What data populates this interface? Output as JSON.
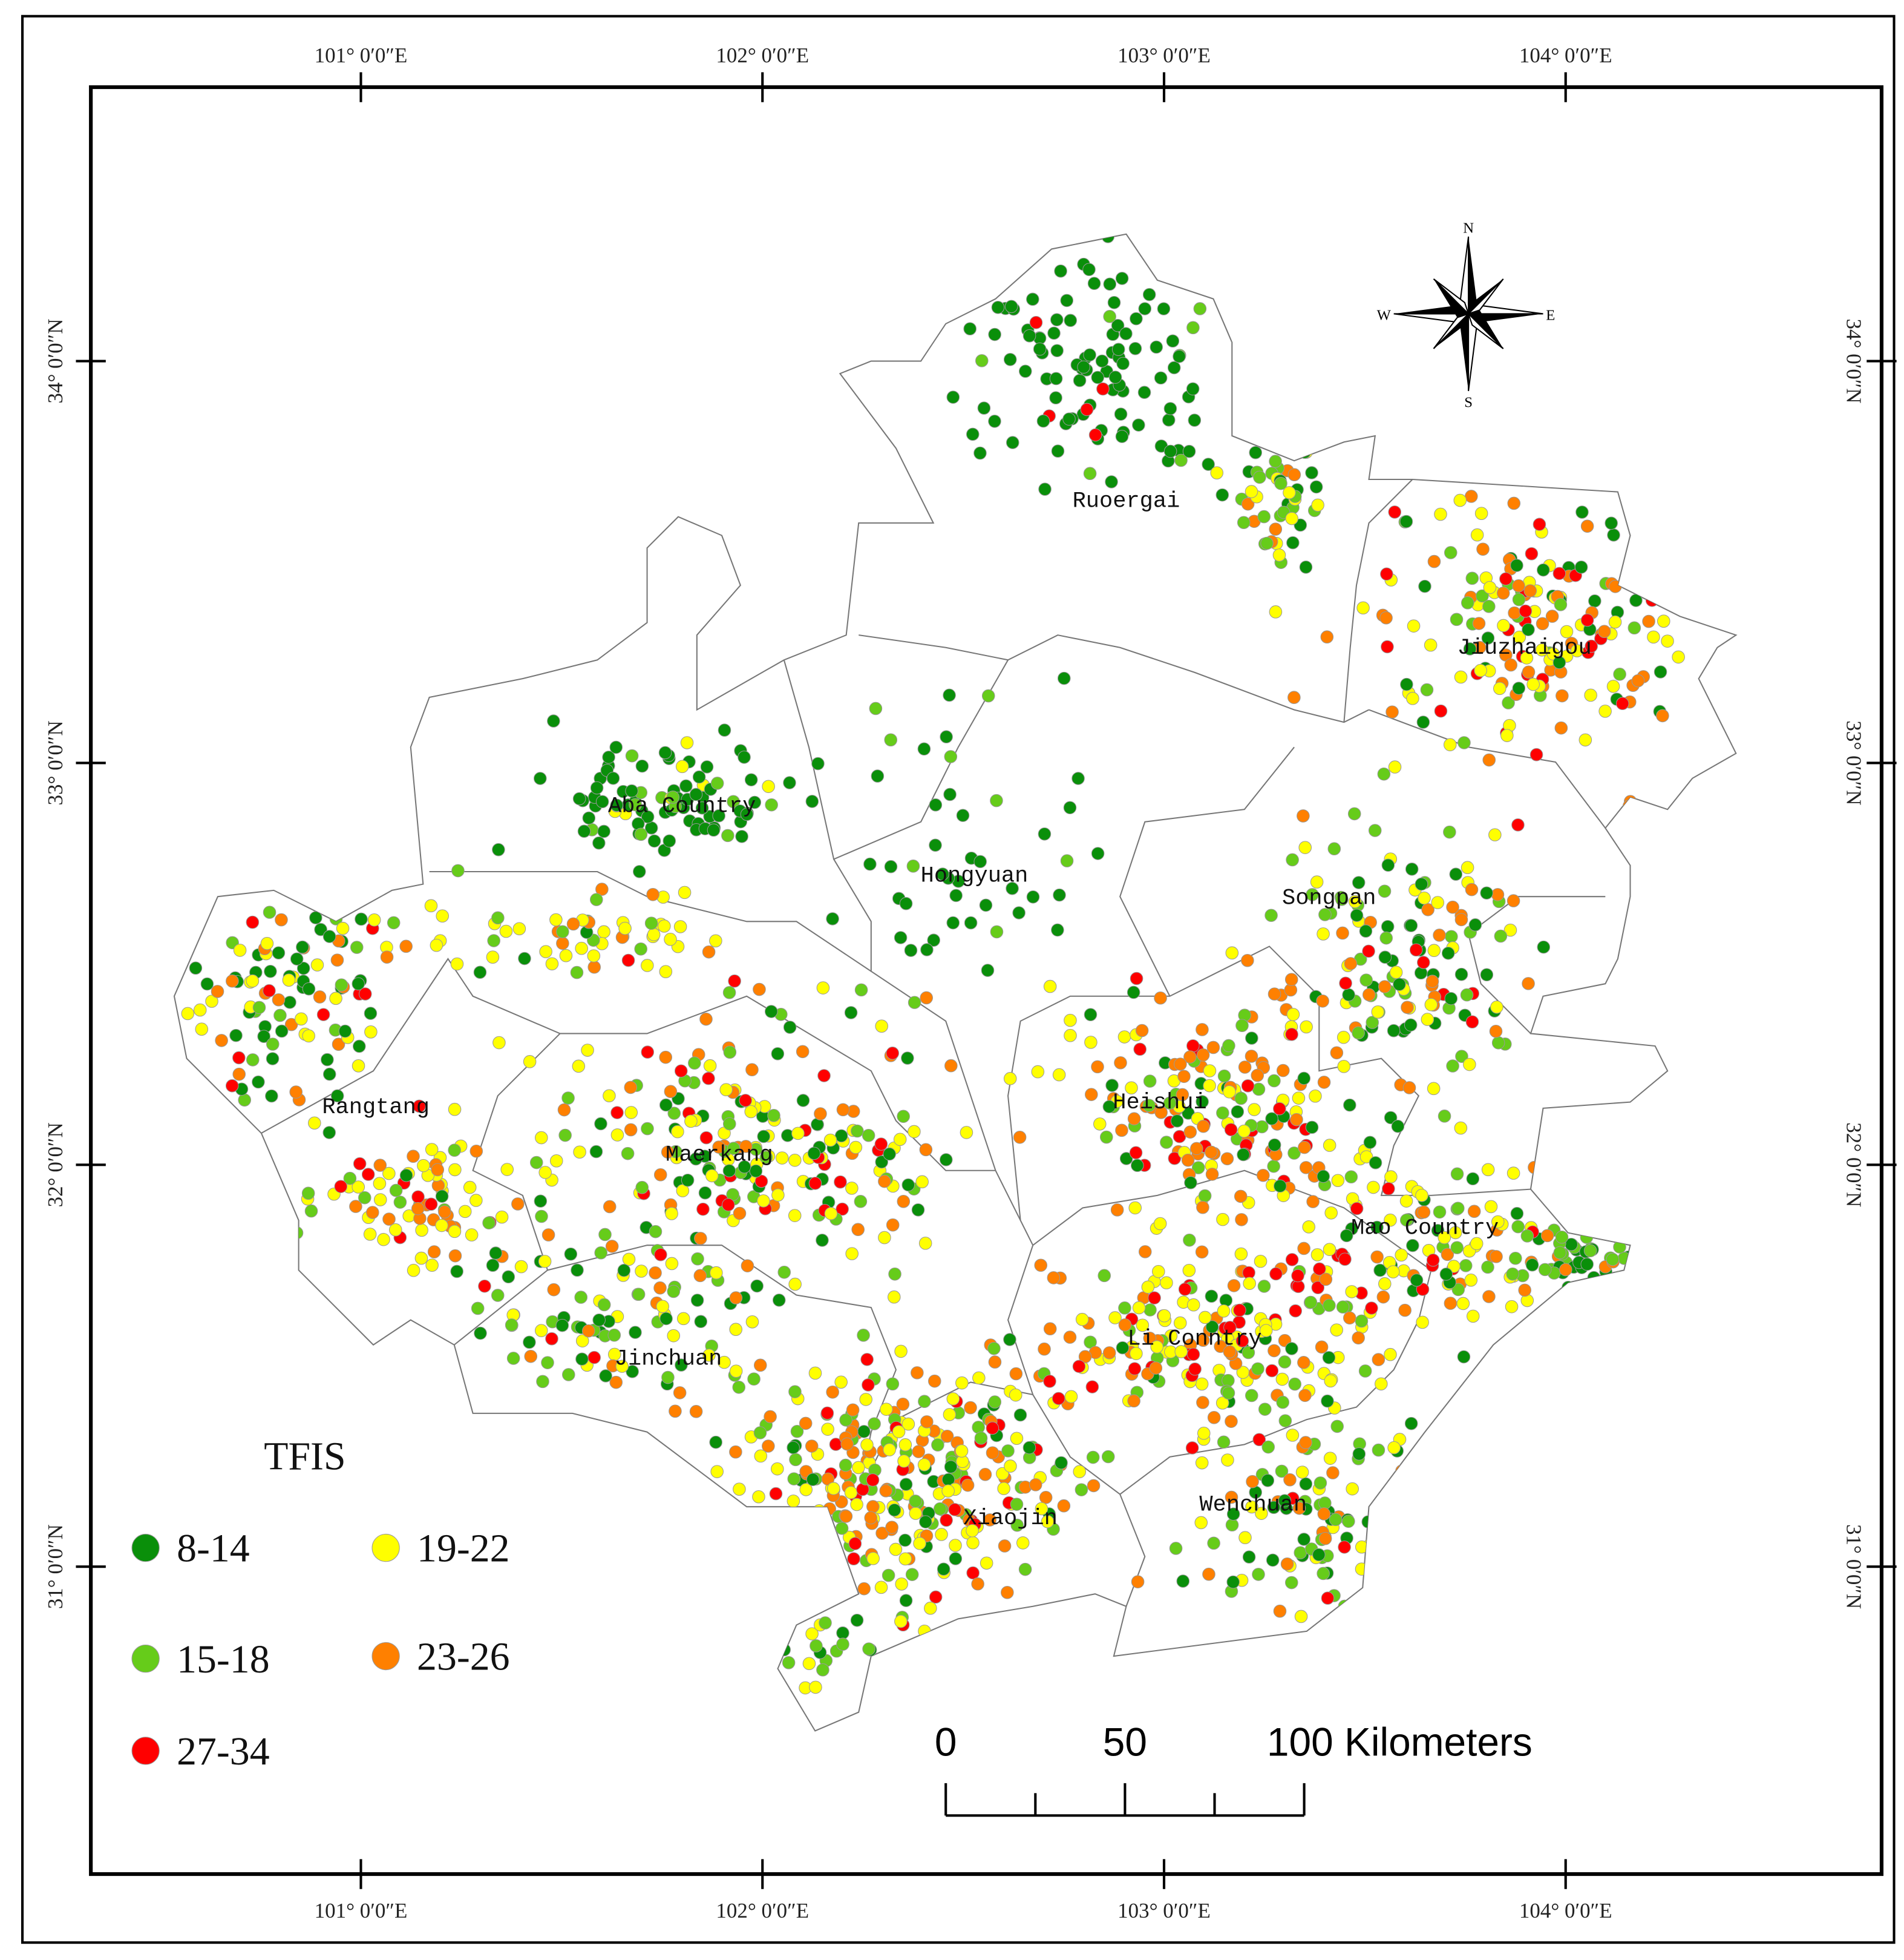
{
  "map": {
    "lon_ticks": [
      {
        "value": 101,
        "label": "101° 0′0″E"
      },
      {
        "value": 102,
        "label": "102° 0′0″E"
      },
      {
        "value": 103,
        "label": "103° 0′0″E"
      },
      {
        "value": 104,
        "label": "104° 0′0″E"
      }
    ],
    "lat_ticks": [
      {
        "value": 34,
        "label": "34° 0′0″N"
      },
      {
        "value": 33,
        "label": "33° 0′0″N"
      },
      {
        "value": 32,
        "label": "32° 0′0″N"
      },
      {
        "value": 31,
        "label": "31° 0′0″N"
      }
    ],
    "regions": [
      "Ruoergai",
      "Jiuzhaigou",
      "Aba Country",
      "Hongyuan",
      "Songpan",
      "Rangtang",
      "Heishui",
      "Maerkang",
      "Mao Country",
      "Li Conntry",
      "Jinchuan",
      "Xiaojin",
      "Wenchuan"
    ],
    "legend": {
      "title": "TFIS",
      "classes": [
        {
          "label": "8-14",
          "color": "#0a8f0a"
        },
        {
          "label": "19-22",
          "color": "#ffff00"
        },
        {
          "label": "15-18",
          "color": "#66cc1a"
        },
        {
          "label": "23-26",
          "color": "#ff8000"
        },
        {
          "label": "27-34",
          "color": "#ff0000"
        }
      ]
    },
    "scale_bar": {
      "ticks": [
        0,
        50,
        {
          "value": 100,
          "label": "100 Kilometers"
        }
      ]
    },
    "compass": {
      "n": "N",
      "s": "S",
      "w": "W",
      "e": "E"
    }
  }
}
